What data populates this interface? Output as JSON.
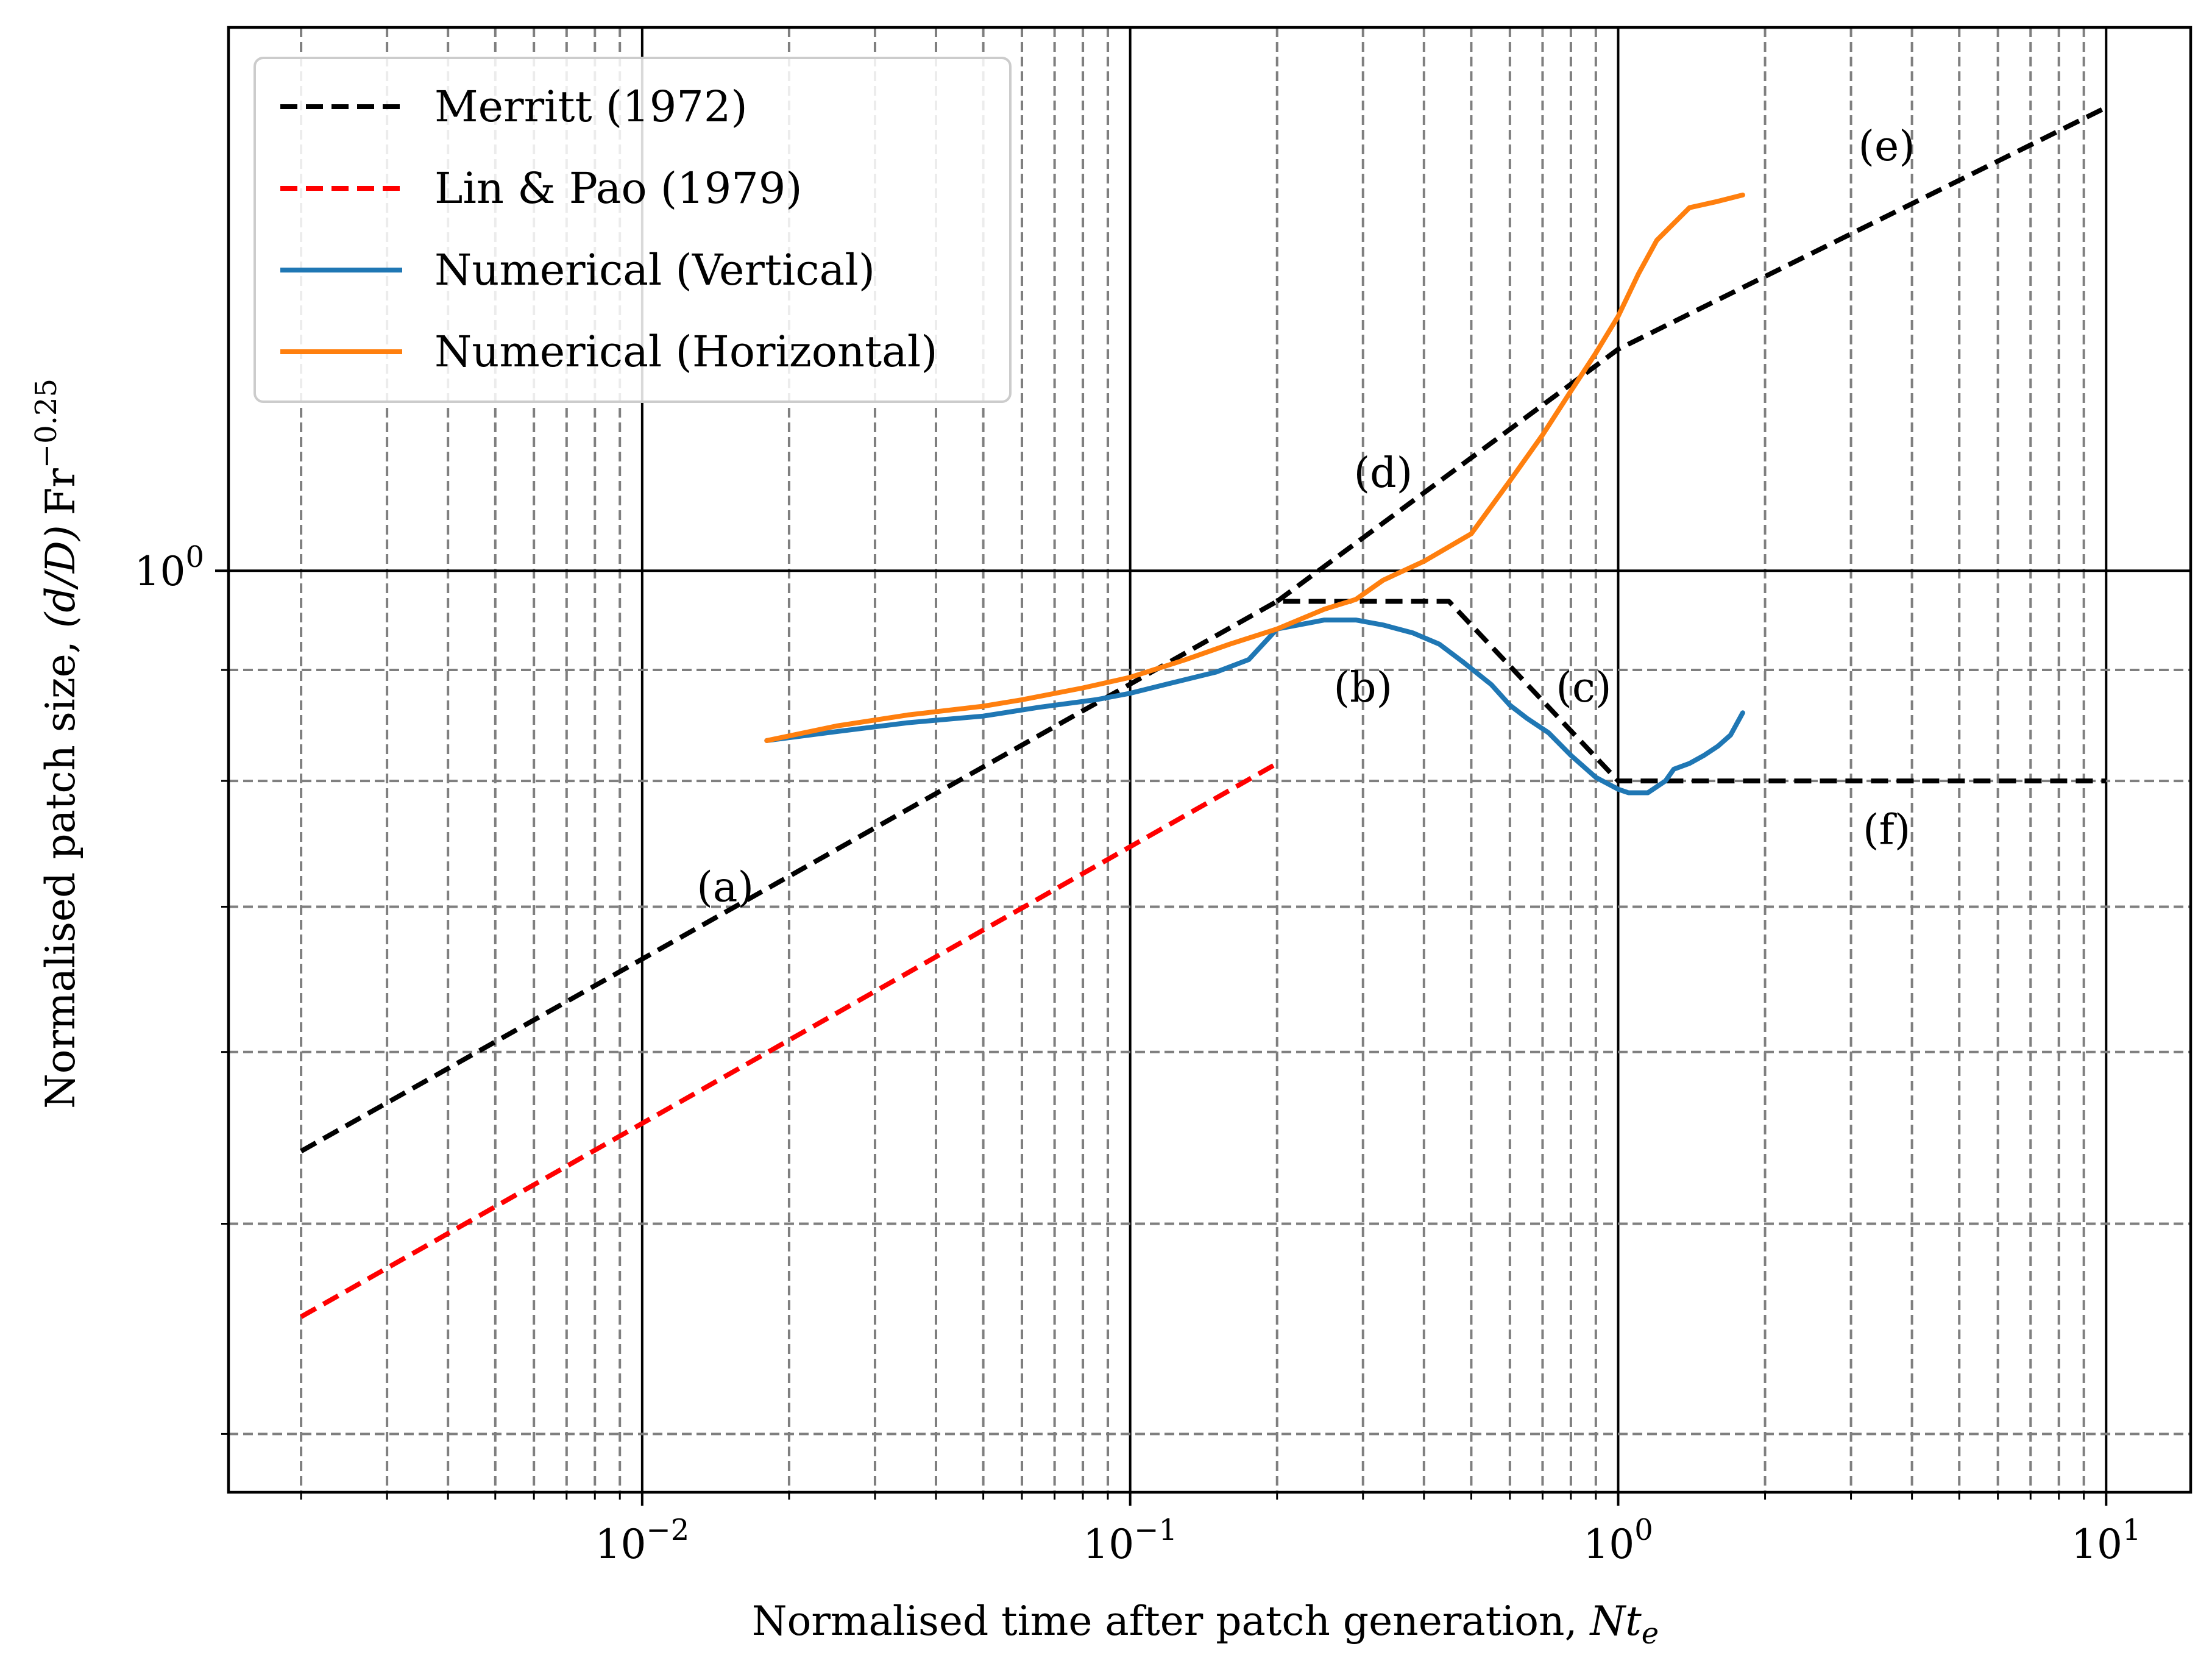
{
  "chart_data": {
    "type": "line",
    "xscale": "log",
    "yscale": "log",
    "xlim": [
      0.00142,
      14.9
    ],
    "ylim": [
      0.376,
      1.78
    ],
    "xlabel": "Normalised time after patch generation, Nt_e",
    "xlabel_parts": {
      "main": "Normalised time after patch generation, ",
      "var": "Nt",
      "sub": "e"
    },
    "ylabel": "Normalised patch size, (d/D) Fr^-0.25",
    "ylabel_parts": {
      "main": "Normalised patch size, ",
      "ratio": "(d/D)",
      "fr": "Fr",
      "exp": "−0.25"
    },
    "x_ticks": [
      {
        "value": 0.01,
        "base": "10",
        "exp": "−2"
      },
      {
        "value": 0.1,
        "base": "10",
        "exp": "−1"
      },
      {
        "value": 1,
        "base": "10",
        "exp": "0"
      },
      {
        "value": 10,
        "base": "10",
        "exp": "1"
      }
    ],
    "y_ticks": [
      {
        "value": 1,
        "base": "10",
        "exp": "0"
      }
    ],
    "grid": true,
    "legend_position": "top-left",
    "series": [
      {
        "name": "Merritt (1972)",
        "color": "#000000",
        "style": "dashed",
        "x": [
          0.002,
          0.2,
          0.45,
          1.0,
          10.0
        ],
        "y": [
          0.54,
          0.968,
          0.968,
          0.8,
          0.8
        ]
      },
      {
        "name": "Merritt (1972) branch d-e",
        "legend": false,
        "color": "#000000",
        "style": "dashed",
        "x": [
          0.2,
          1.0,
          10.0
        ],
        "y": [
          0.968,
          1.265,
          1.635
        ]
      },
      {
        "name": "Lin & Pao (1979)",
        "color": "#ff0000",
        "style": "dashed",
        "x": [
          0.002,
          0.2
        ],
        "y": [
          0.453,
          0.815
        ]
      },
      {
        "name": "Numerical (Vertical)",
        "color": "#1f77b4",
        "style": "solid",
        "x": [
          0.018,
          0.025,
          0.035,
          0.05,
          0.065,
          0.085,
          0.1,
          0.12,
          0.15,
          0.175,
          0.2,
          0.25,
          0.29,
          0.33,
          0.38,
          0.43,
          0.48,
          0.55,
          0.6,
          0.65,
          0.72,
          0.8,
          0.9,
          1.0,
          1.05,
          1.15,
          1.25,
          1.3,
          1.4,
          1.5,
          1.6,
          1.7,
          1.8
        ],
        "y": [
          0.835,
          0.843,
          0.851,
          0.857,
          0.865,
          0.872,
          0.878,
          0.887,
          0.898,
          0.91,
          0.94,
          0.949,
          0.949,
          0.944,
          0.936,
          0.925,
          0.908,
          0.886,
          0.867,
          0.855,
          0.842,
          0.822,
          0.803,
          0.793,
          0.79,
          0.79,
          0.8,
          0.81,
          0.815,
          0.822,
          0.83,
          0.84,
          0.86
        ]
      },
      {
        "name": "Numerical (Horizontal)",
        "color": "#ff7f0e",
        "style": "solid",
        "x": [
          0.018,
          0.025,
          0.035,
          0.05,
          0.06,
          0.08,
          0.1,
          0.13,
          0.16,
          0.2,
          0.25,
          0.29,
          0.33,
          0.4,
          0.5,
          0.6,
          0.7,
          0.8,
          0.9,
          1.0,
          1.1,
          1.2,
          1.4,
          1.6,
          1.8
        ],
        "y": [
          0.835,
          0.848,
          0.858,
          0.866,
          0.872,
          0.883,
          0.893,
          0.91,
          0.925,
          0.94,
          0.96,
          0.97,
          0.99,
          1.01,
          1.04,
          1.1,
          1.155,
          1.21,
          1.26,
          1.31,
          1.37,
          1.42,
          1.47,
          1.48,
          1.49
        ]
      }
    ],
    "annotations": [
      {
        "text": "(a)",
        "x": 0.0148,
        "y": 0.715
      },
      {
        "text": "(b)",
        "x": 0.3,
        "y": 0.884
      },
      {
        "text": "(c)",
        "x": 0.85,
        "y": 0.884
      },
      {
        "text": "(d)",
        "x": 0.33,
        "y": 1.11
      },
      {
        "text": "(e)",
        "x": 3.55,
        "y": 1.57
      },
      {
        "text": "(f)",
        "x": 3.55,
        "y": 0.76
      }
    ]
  }
}
